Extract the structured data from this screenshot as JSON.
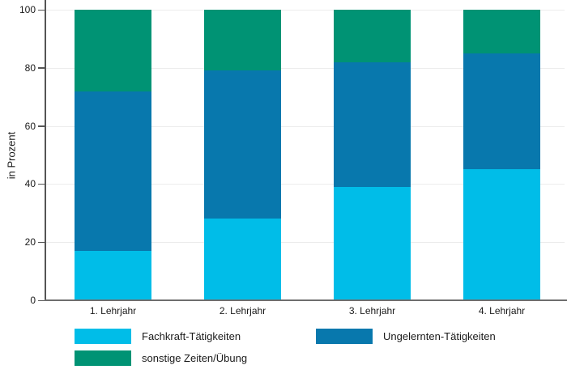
{
  "chart_data": {
    "type": "bar",
    "stacked": true,
    "title": "",
    "ylabel": "in Prozent",
    "xlabel": "",
    "ylim": [
      0,
      100
    ],
    "yticks": [
      0,
      20,
      40,
      60,
      80,
      100
    ],
    "grid": true,
    "legend_position": "bottom",
    "categories": [
      "1. Lehrjahr",
      "2. Lehrjahr",
      "3. Lehrjahr",
      "4. Lehrjahr"
    ],
    "series": [
      {
        "name": "Fachkraft-Tätigkeiten",
        "color": "#00bde8",
        "values": [
          17,
          28,
          39,
          45
        ]
      },
      {
        "name": "Ungelernten-Tätigkeiten",
        "color": "#0878ad",
        "values": [
          55,
          51,
          43,
          40
        ]
      },
      {
        "name": "sonstige Zeiten/Übung",
        "color": "#009374",
        "values": [
          28,
          21,
          18,
          15
        ]
      }
    ],
    "colors": {
      "grid": "#ececec",
      "axis": "#555555",
      "text": "#1a1a1a"
    }
  }
}
